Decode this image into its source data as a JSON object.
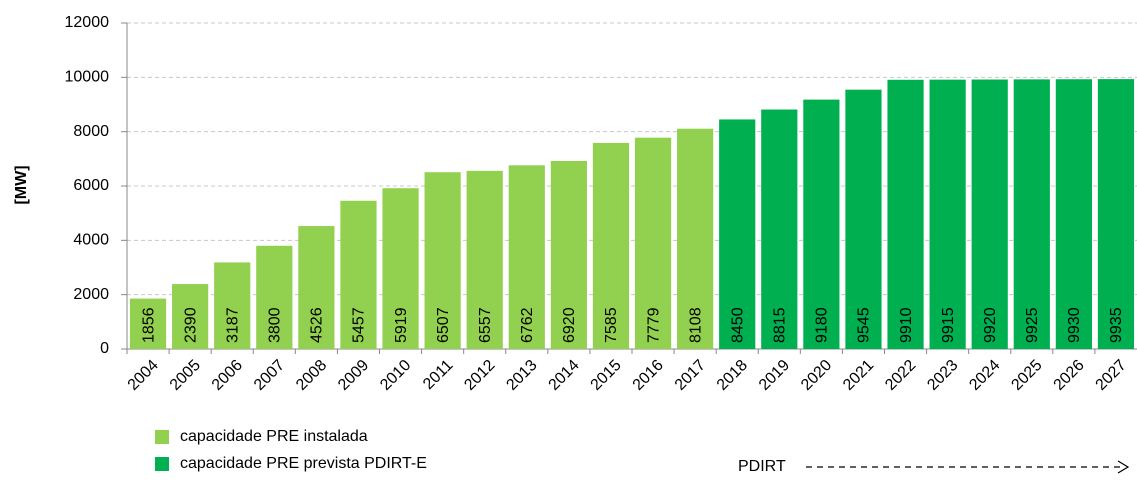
{
  "chart_data": {
    "type": "bar",
    "y_label": "[MW]",
    "categories": [
      "2004",
      "2005",
      "2006",
      "2007",
      "2008",
      "2009",
      "2010",
      "2011",
      "2012",
      "2013",
      "2014",
      "2015",
      "2016",
      "2017",
      "2018",
      "2019",
      "2020",
      "2021",
      "2022",
      "2023",
      "2024",
      "2025",
      "2026",
      "2027"
    ],
    "series": [
      {
        "name": "capacidade PRE instalada",
        "color": "#92d050",
        "values": [
          1856,
          2390,
          3187,
          3800,
          4526,
          5457,
          5919,
          6507,
          6557,
          6762,
          6920,
          7585,
          7779,
          8108,
          null,
          null,
          null,
          null,
          null,
          null,
          null,
          null,
          null,
          null
        ]
      },
      {
        "name": "capacidade PRE prevista PDIRT-E",
        "color": "#00b050",
        "values": [
          null,
          null,
          null,
          null,
          null,
          null,
          null,
          null,
          null,
          null,
          null,
          null,
          null,
          null,
          8450,
          8815,
          9180,
          9545,
          9910,
          9915,
          9920,
          9925,
          9930,
          9935
        ]
      }
    ],
    "ylim": [
      0,
      12000
    ],
    "yticks": [
      0,
      2000,
      4000,
      6000,
      8000,
      10000,
      12000
    ],
    "grid": true,
    "annotation": "PDIRT"
  }
}
